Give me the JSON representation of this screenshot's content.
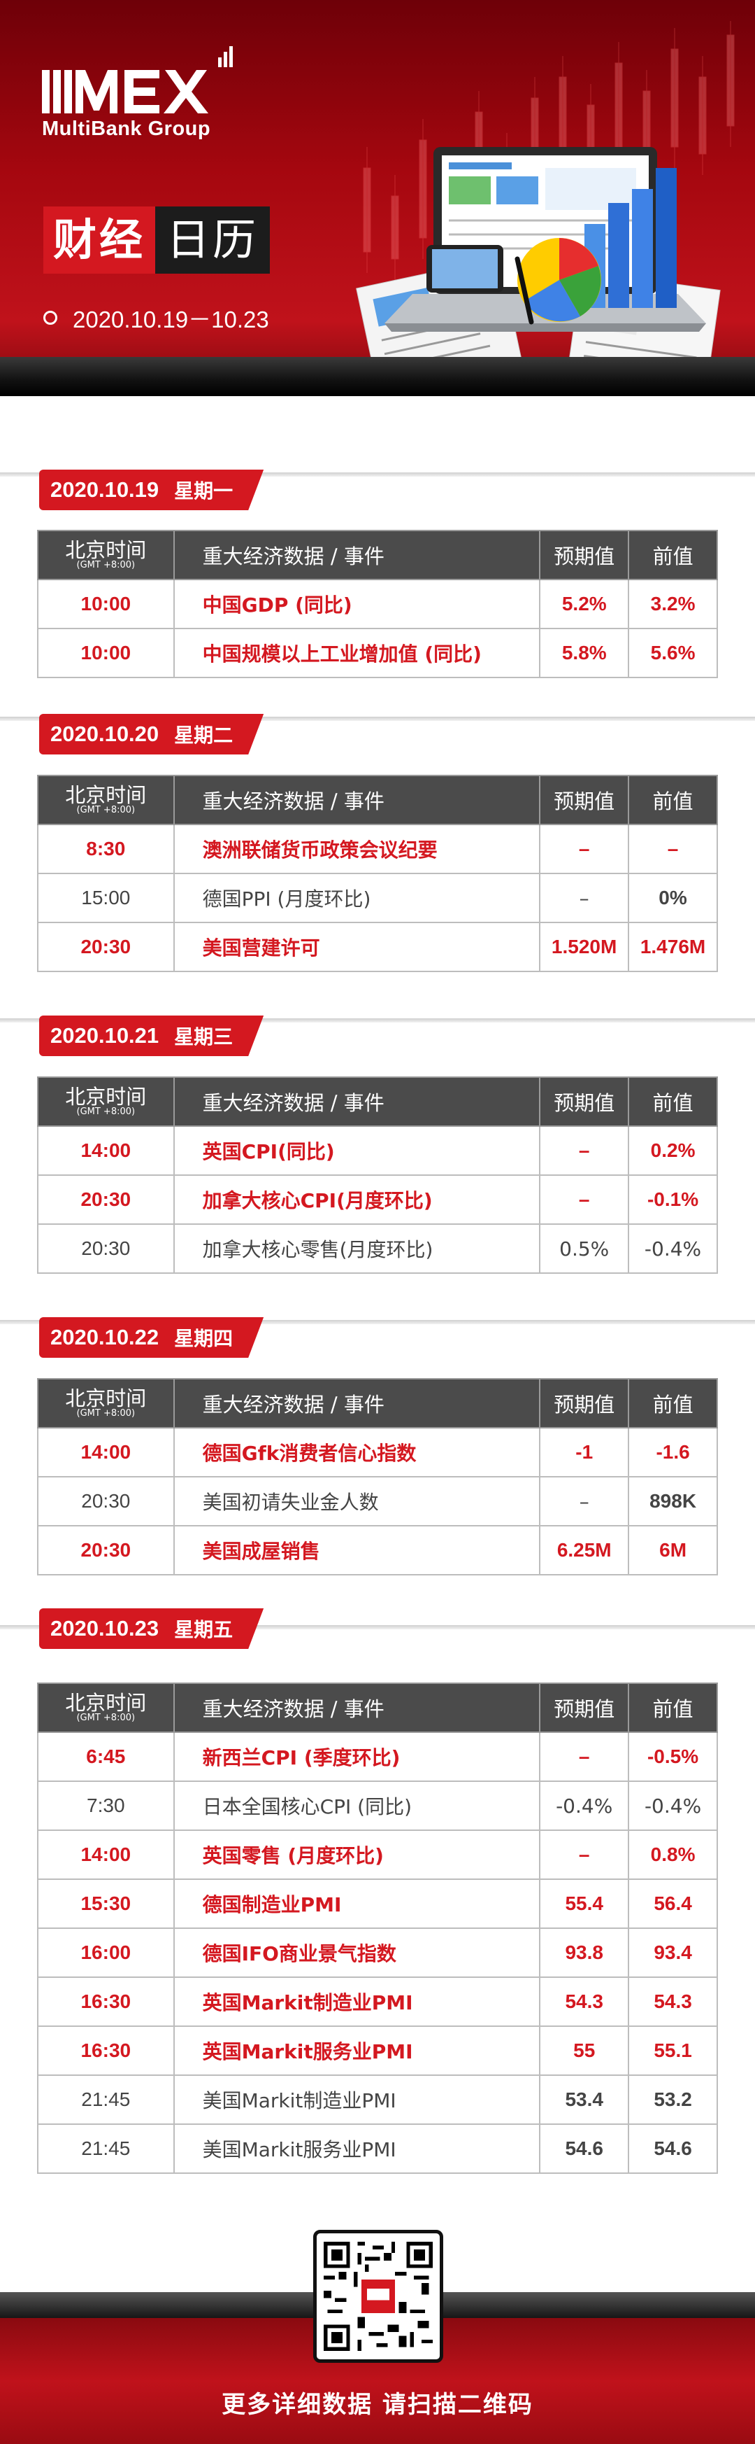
{
  "brand": {
    "logo_text": "MultiBank Group",
    "accent_color": "#d41820"
  },
  "title": {
    "part1": "财经",
    "part2": "日历",
    "date_range": "2020.10.19－10.23"
  },
  "table_headers": {
    "time": "北京时间",
    "tz": "(GMT +8:00)",
    "event": "重大经济数据 / 事件",
    "forecast": "预期值",
    "previous": "前值"
  },
  "days": [
    {
      "date": "2020.10.19",
      "weekday": "星期一",
      "rows": [
        {
          "time": "10:00",
          "event": "中国GDP (同比)",
          "forecast": "5.2%",
          "previous": "3.2%"
        },
        {
          "time": "10:00",
          "event": "中国规模以上工业增加值 (同比)",
          "forecast": "5.8%",
          "previous": "5.6%"
        }
      ]
    },
    {
      "date": "2020.10.20",
      "weekday": "星期二",
      "rows": [
        {
          "time": "8:30",
          "event": "澳洲联储货币政策会议纪要",
          "forecast": "–",
          "previous": "–"
        },
        {
          "time": "15:00",
          "event": "德国PPI (月度环比)",
          "forecast": "–",
          "previous": "0%"
        },
        {
          "time": "20:30",
          "event": "美国营建许可",
          "forecast": "1.520M",
          "previous": "1.476M"
        }
      ]
    },
    {
      "date": "2020.10.21",
      "weekday": "星期三",
      "rows": [
        {
          "time": "14:00",
          "event": "英国CPI(同比)",
          "forecast": "–",
          "previous": "0.2%"
        },
        {
          "time": "20:30",
          "event": "加拿大核心CPI(月度环比)",
          "forecast": "–",
          "previous": "-0.1%"
        },
        {
          "time": "20:30",
          "event": "加拿大核心零售(月度环比)",
          "forecast": "0.5%",
          "previous": "-0.4%"
        }
      ]
    },
    {
      "date": "2020.10.22",
      "weekday": "星期四",
      "rows": [
        {
          "time": "14:00",
          "event": "德国Gfk消费者信心指数",
          "forecast": "-1",
          "previous": "-1.6"
        },
        {
          "time": "20:30",
          "event": "美国初请失业金人数",
          "forecast": "–",
          "previous": "898K"
        },
        {
          "time": "20:30",
          "event": "美国成屋销售",
          "forecast": "6.25M",
          "previous": "6M"
        }
      ]
    },
    {
      "date": "2020.10.23",
      "weekday": "星期五",
      "rows": [
        {
          "time": "6:45",
          "event": "新西兰CPI (季度环比)",
          "forecast": "–",
          "previous": "-0.5%"
        },
        {
          "time": "7:30",
          "event": "日本全国核心CPI (同比)",
          "forecast": "-0.4%",
          "previous": "-0.4%"
        },
        {
          "time": "14:00",
          "event": "英国零售 (月度环比)",
          "forecast": "–",
          "previous": "0.8%"
        },
        {
          "time": "15:30",
          "event": "德国制造业PMI",
          "forecast": "55.4",
          "previous": "56.4"
        },
        {
          "time": "16:00",
          "event": "德国IFO商业景气指数",
          "forecast": "93.8",
          "previous": "93.4"
        },
        {
          "time": "16:30",
          "event": "英国Markit制造业PMI",
          "forecast": "54.3",
          "previous": "54.3"
        },
        {
          "time": "16:30",
          "event": "英国Markit服务业PMI",
          "forecast": "55",
          "previous": "55.1"
        },
        {
          "time": "21:45",
          "event": "美国Markit制造业PMI",
          "forecast": "53.4",
          "previous": "53.2"
        },
        {
          "time": "21:45",
          "event": "美国Markit服务业PMI",
          "forecast": "54.6",
          "previous": "54.6"
        }
      ]
    }
  ],
  "footer": {
    "text": "更多详细数据 请扫描二维码"
  }
}
